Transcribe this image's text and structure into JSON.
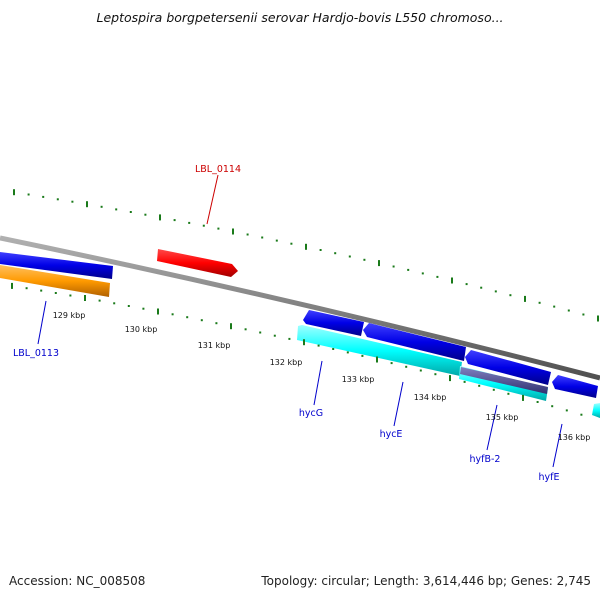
{
  "title": "Leptospira borgpetersenii serovar Hardjo-bovis L550 chromoso...",
  "footer": {
    "accession": "Accession: NC_008508",
    "summary": "Topology: circular; Length: 3,614,446 bp; Genes: 2,745"
  },
  "tick_labels": [
    "129 kbp",
    "130 kbp",
    "131 kbp",
    "132 kbp",
    "133 kbp",
    "134 kbp",
    "135 kbp",
    "136 kbp"
  ],
  "gene_labels": {
    "lbl_0114": "LBL_0114",
    "lbl_0113": "LBL_0113",
    "hycG": "hycG",
    "hycE": "hycE",
    "hyfB2": "hyfB-2",
    "hyfE": "hyfE"
  },
  "colors": {
    "forward_cds": "#ff0000",
    "reverse_cds": "#0000e6",
    "orange_feature": "#ff9a00",
    "cyan_feature": "#00ffff",
    "backbone": "#808080",
    "ticks": "#1a7a1a",
    "label_forward": "#cc0000",
    "label_reverse": "#0000cc"
  }
}
